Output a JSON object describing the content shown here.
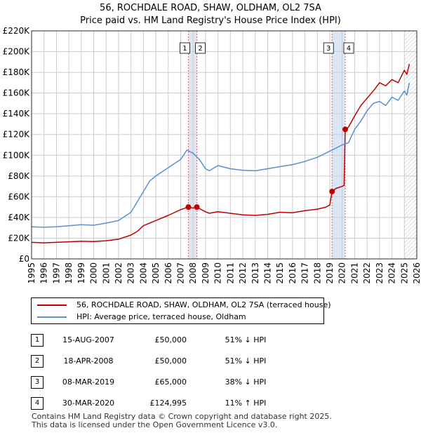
{
  "chart_data": {
    "type": "line",
    "title": "56, ROCHDALE ROAD, SHAW, OLDHAM, OL2 7SA",
    "subtitle": "Price paid vs. HM Land Registry's House Price Index (HPI)",
    "xlabel": "",
    "ylabel": "",
    "xlim": [
      1995,
      2026
    ],
    "ylim": [
      0,
      220000
    ],
    "x_ticks": [
      "1995",
      "1996",
      "1997",
      "1998",
      "1999",
      "2000",
      "2001",
      "2002",
      "2003",
      "2004",
      "2005",
      "2006",
      "2007",
      "2008",
      "2009",
      "2010",
      "2011",
      "2012",
      "2013",
      "2014",
      "2015",
      "2016",
      "2017",
      "2018",
      "2019",
      "2020",
      "2021",
      "2022",
      "2023",
      "2024",
      "2025",
      "2026"
    ],
    "y_ticks": [
      "£0",
      "£20K",
      "£40K",
      "£60K",
      "£80K",
      "£100K",
      "£120K",
      "£140K",
      "£160K",
      "£180K",
      "£200K",
      "£220K"
    ],
    "grid": true,
    "future_hatch_from": 2025.0,
    "colors": {
      "property": "#c00000",
      "hpi": "#5b8fce",
      "band": "#dde6f5",
      "marker_line": "#e06666",
      "grid": "#cccccc"
    },
    "series": [
      {
        "name": "56, ROCHDALE ROAD, SHAW, OLDHAM, OL2 7SA (terraced house)",
        "key": "property",
        "x": [
          1995.0,
          1996.0,
          1997.0,
          1998.0,
          1999.0,
          2000.0,
          2001.0,
          2002.0,
          2003.0,
          2003.5,
          2004.0,
          2005.0,
          2006.0,
          2007.0,
          2007.62,
          2008.0,
          2008.3,
          2008.6,
          2009.0,
          2009.3,
          2010.0,
          2011.0,
          2012.0,
          2013.0,
          2014.0,
          2015.0,
          2016.0,
          2017.0,
          2018.0,
          2018.7,
          2019.0,
          2019.18,
          2019.5,
          2020.0,
          2020.15,
          2020.24,
          2020.5,
          2021.0,
          2021.5,
          2022.0,
          2022.5,
          2023.0,
          2023.5,
          2024.0,
          2024.5,
          2025.0,
          2025.2,
          2025.4
        ],
        "y": [
          16000,
          15500,
          16000,
          16500,
          17000,
          16800,
          17500,
          19000,
          23000,
          26500,
          32000,
          37000,
          42000,
          47500,
          50000,
          49000,
          50000,
          48000,
          45500,
          44000,
          45500,
          44000,
          42500,
          42000,
          43000,
          45000,
          44500,
          46500,
          48000,
          50000,
          52000,
          65000,
          68000,
          70000,
          71000,
          124995,
          127000,
          138000,
          148000,
          155000,
          162000,
          170000,
          167000,
          173000,
          170000,
          182000,
          178000,
          188000
        ]
      },
      {
        "name": "HPI: Average price, terraced house, Oldham",
        "key": "hpi",
        "x": [
          1995.0,
          1996.0,
          1997.0,
          1998.0,
          1999.0,
          2000.0,
          2001.0,
          2002.0,
          2003.0,
          2004.0,
          2004.5,
          2005.0,
          2006.0,
          2007.0,
          2007.5,
          2008.0,
          2008.5,
          2009.0,
          2009.3,
          2010.0,
          2011.0,
          2012.0,
          2013.0,
          2014.0,
          2015.0,
          2016.0,
          2017.0,
          2018.0,
          2019.0,
          2019.5,
          2020.0,
          2020.5,
          2021.0,
          2021.5,
          2022.0,
          2022.5,
          2023.0,
          2023.5,
          2024.0,
          2024.5,
          2025.0,
          2025.2,
          2025.4
        ],
        "y": [
          31000,
          30500,
          31000,
          32000,
          33000,
          32500,
          34500,
          37000,
          45000,
          65000,
          75000,
          80000,
          88000,
          96000,
          105000,
          102000,
          96000,
          87000,
          85000,
          90000,
          87000,
          85500,
          85000,
          87000,
          89000,
          91000,
          94000,
          98000,
          104000,
          107000,
          110000,
          112000,
          125000,
          133000,
          143000,
          150000,
          152000,
          148000,
          156000,
          153000,
          162000,
          158000,
          170000
        ]
      }
    ],
    "markers": [
      {
        "label": "1",
        "x": 2007.62,
        "y": 50000
      },
      {
        "label": "2",
        "x": 2008.3,
        "y": 50000
      },
      {
        "label": "3",
        "x": 2019.18,
        "y": 65000
      },
      {
        "label": "4",
        "x": 2020.24,
        "y": 124995
      }
    ],
    "bands": [
      {
        "from": 2007.62,
        "to": 2008.3
      },
      {
        "from": 2019.18,
        "to": 2020.24
      }
    ]
  },
  "legend": {
    "property_label": "56, ROCHDALE ROAD, SHAW, OLDHAM, OL2 7SA (terraced house)",
    "hpi_label": "HPI: Average price, terraced house, Oldham"
  },
  "sales": [
    {
      "num": "1",
      "date": "15-AUG-2007",
      "price": "£50,000",
      "hpi": "51% ↓ HPI"
    },
    {
      "num": "2",
      "date": "18-APR-2008",
      "price": "£50,000",
      "hpi": "51% ↓ HPI"
    },
    {
      "num": "3",
      "date": "08-MAR-2019",
      "price": "£65,000",
      "hpi": "38% ↓ HPI"
    },
    {
      "num": "4",
      "date": "30-MAR-2020",
      "price": "£124,995",
      "hpi": "11% ↑ HPI"
    }
  ],
  "footer": {
    "line1": "Contains HM Land Registry data © Crown copyright and database right 2025.",
    "line2": "This data is licensed under the Open Government Licence v3.0."
  }
}
